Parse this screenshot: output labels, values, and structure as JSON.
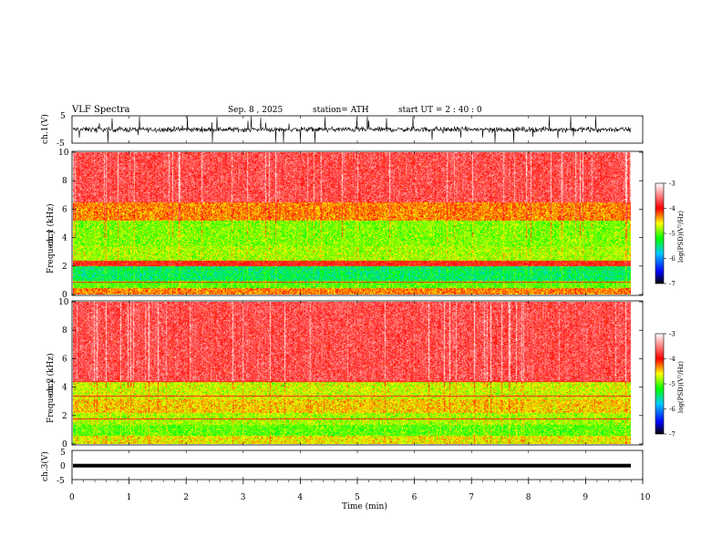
{
  "header": {
    "title": "VLF  Spectra",
    "date": "Sep. 8  , 2025",
    "station": "station= ATH",
    "start": "start  UT  =   2  : 40 : 0"
  },
  "chart_data": [
    {
      "name": "ch1-waveform",
      "type": "line",
      "ylabel": "ch.1(V)",
      "ylim": [
        -5,
        5
      ],
      "yticks": [
        "5",
        "-5"
      ],
      "xlim": [
        0,
        10
      ],
      "description_units": "V vs min"
    },
    {
      "name": "ch1-spectrogram",
      "type": "heatmap",
      "title": "ch.1",
      "ylabel": "Frequency  (kHz)",
      "ylim": [
        0,
        10
      ],
      "yticks": [
        "0",
        "2",
        "4",
        "6",
        "8",
        "10"
      ],
      "xlim": [
        0,
        9.8
      ],
      "colorbar": {
        "label": "log(PSD)(V²/Hz)",
        "range": [
          -7,
          -3
        ],
        "ticks": [
          "-3",
          "-4",
          "-5",
          "-6",
          "-7"
        ]
      },
      "bands": [
        {
          "from": 0.0,
          "to": 0.5,
          "level": -4.3
        },
        {
          "from": 0.5,
          "to": 1.0,
          "level": -5.0
        },
        {
          "from": 1.0,
          "to": 2.0,
          "level": -5.4
        },
        {
          "from": 2.0,
          "to": 2.4,
          "level": -4.0
        },
        {
          "from": 2.4,
          "to": 3.4,
          "level": -4.8
        },
        {
          "from": 3.4,
          "to": 5.2,
          "level": -4.9
        },
        {
          "from": 5.2,
          "to": 6.5,
          "level": -4.3
        },
        {
          "from": 6.5,
          "to": 10.0,
          "level": -3.7
        }
      ],
      "lines_khz": [
        0.9,
        2.1,
        2.25,
        2.4
      ]
    },
    {
      "name": "ch2-spectrogram",
      "type": "heatmap",
      "title": "ch.2",
      "ylabel": "Frequency  (kHz)",
      "ylim": [
        0,
        10
      ],
      "yticks": [
        "0",
        "2",
        "4",
        "6",
        "8",
        "10"
      ],
      "xlim": [
        0,
        9.8
      ],
      "colorbar": {
        "label": "log(PSD)(V²/Hz)",
        "range": [
          -7,
          -3
        ],
        "ticks": [
          "-3",
          "-4",
          "-5",
          "-6",
          "-7"
        ]
      },
      "bands": [
        {
          "from": 0.0,
          "to": 0.6,
          "level": -4.6
        },
        {
          "from": 0.6,
          "to": 1.4,
          "level": -5.0
        },
        {
          "from": 1.4,
          "to": 2.2,
          "level": -4.8
        },
        {
          "from": 2.2,
          "to": 3.2,
          "level": -4.5
        },
        {
          "from": 3.2,
          "to": 4.4,
          "level": -4.7
        },
        {
          "from": 4.4,
          "to": 10.0,
          "level": -3.7
        }
      ],
      "lines_khz": [
        1.8,
        3.4,
        4.4
      ]
    },
    {
      "name": "ch3-waveform",
      "type": "line",
      "ylabel": "ch.3(V)",
      "ylim": [
        -5,
        5
      ],
      "yticks": [
        "5",
        "0",
        "-5"
      ],
      "xlim": [
        0,
        10
      ],
      "level": -0.6
    }
  ],
  "xaxis": {
    "label": "Time  (min)",
    "ticks": [
      "0",
      "1",
      "2",
      "3",
      "4",
      "5",
      "6",
      "7",
      "8",
      "9",
      "10"
    ]
  },
  "colors": {
    "scale": [
      "#000000",
      "#0000ff",
      "#00c8ff",
      "#00ff00",
      "#ffff00",
      "#ff0000",
      "#ffffff"
    ]
  }
}
